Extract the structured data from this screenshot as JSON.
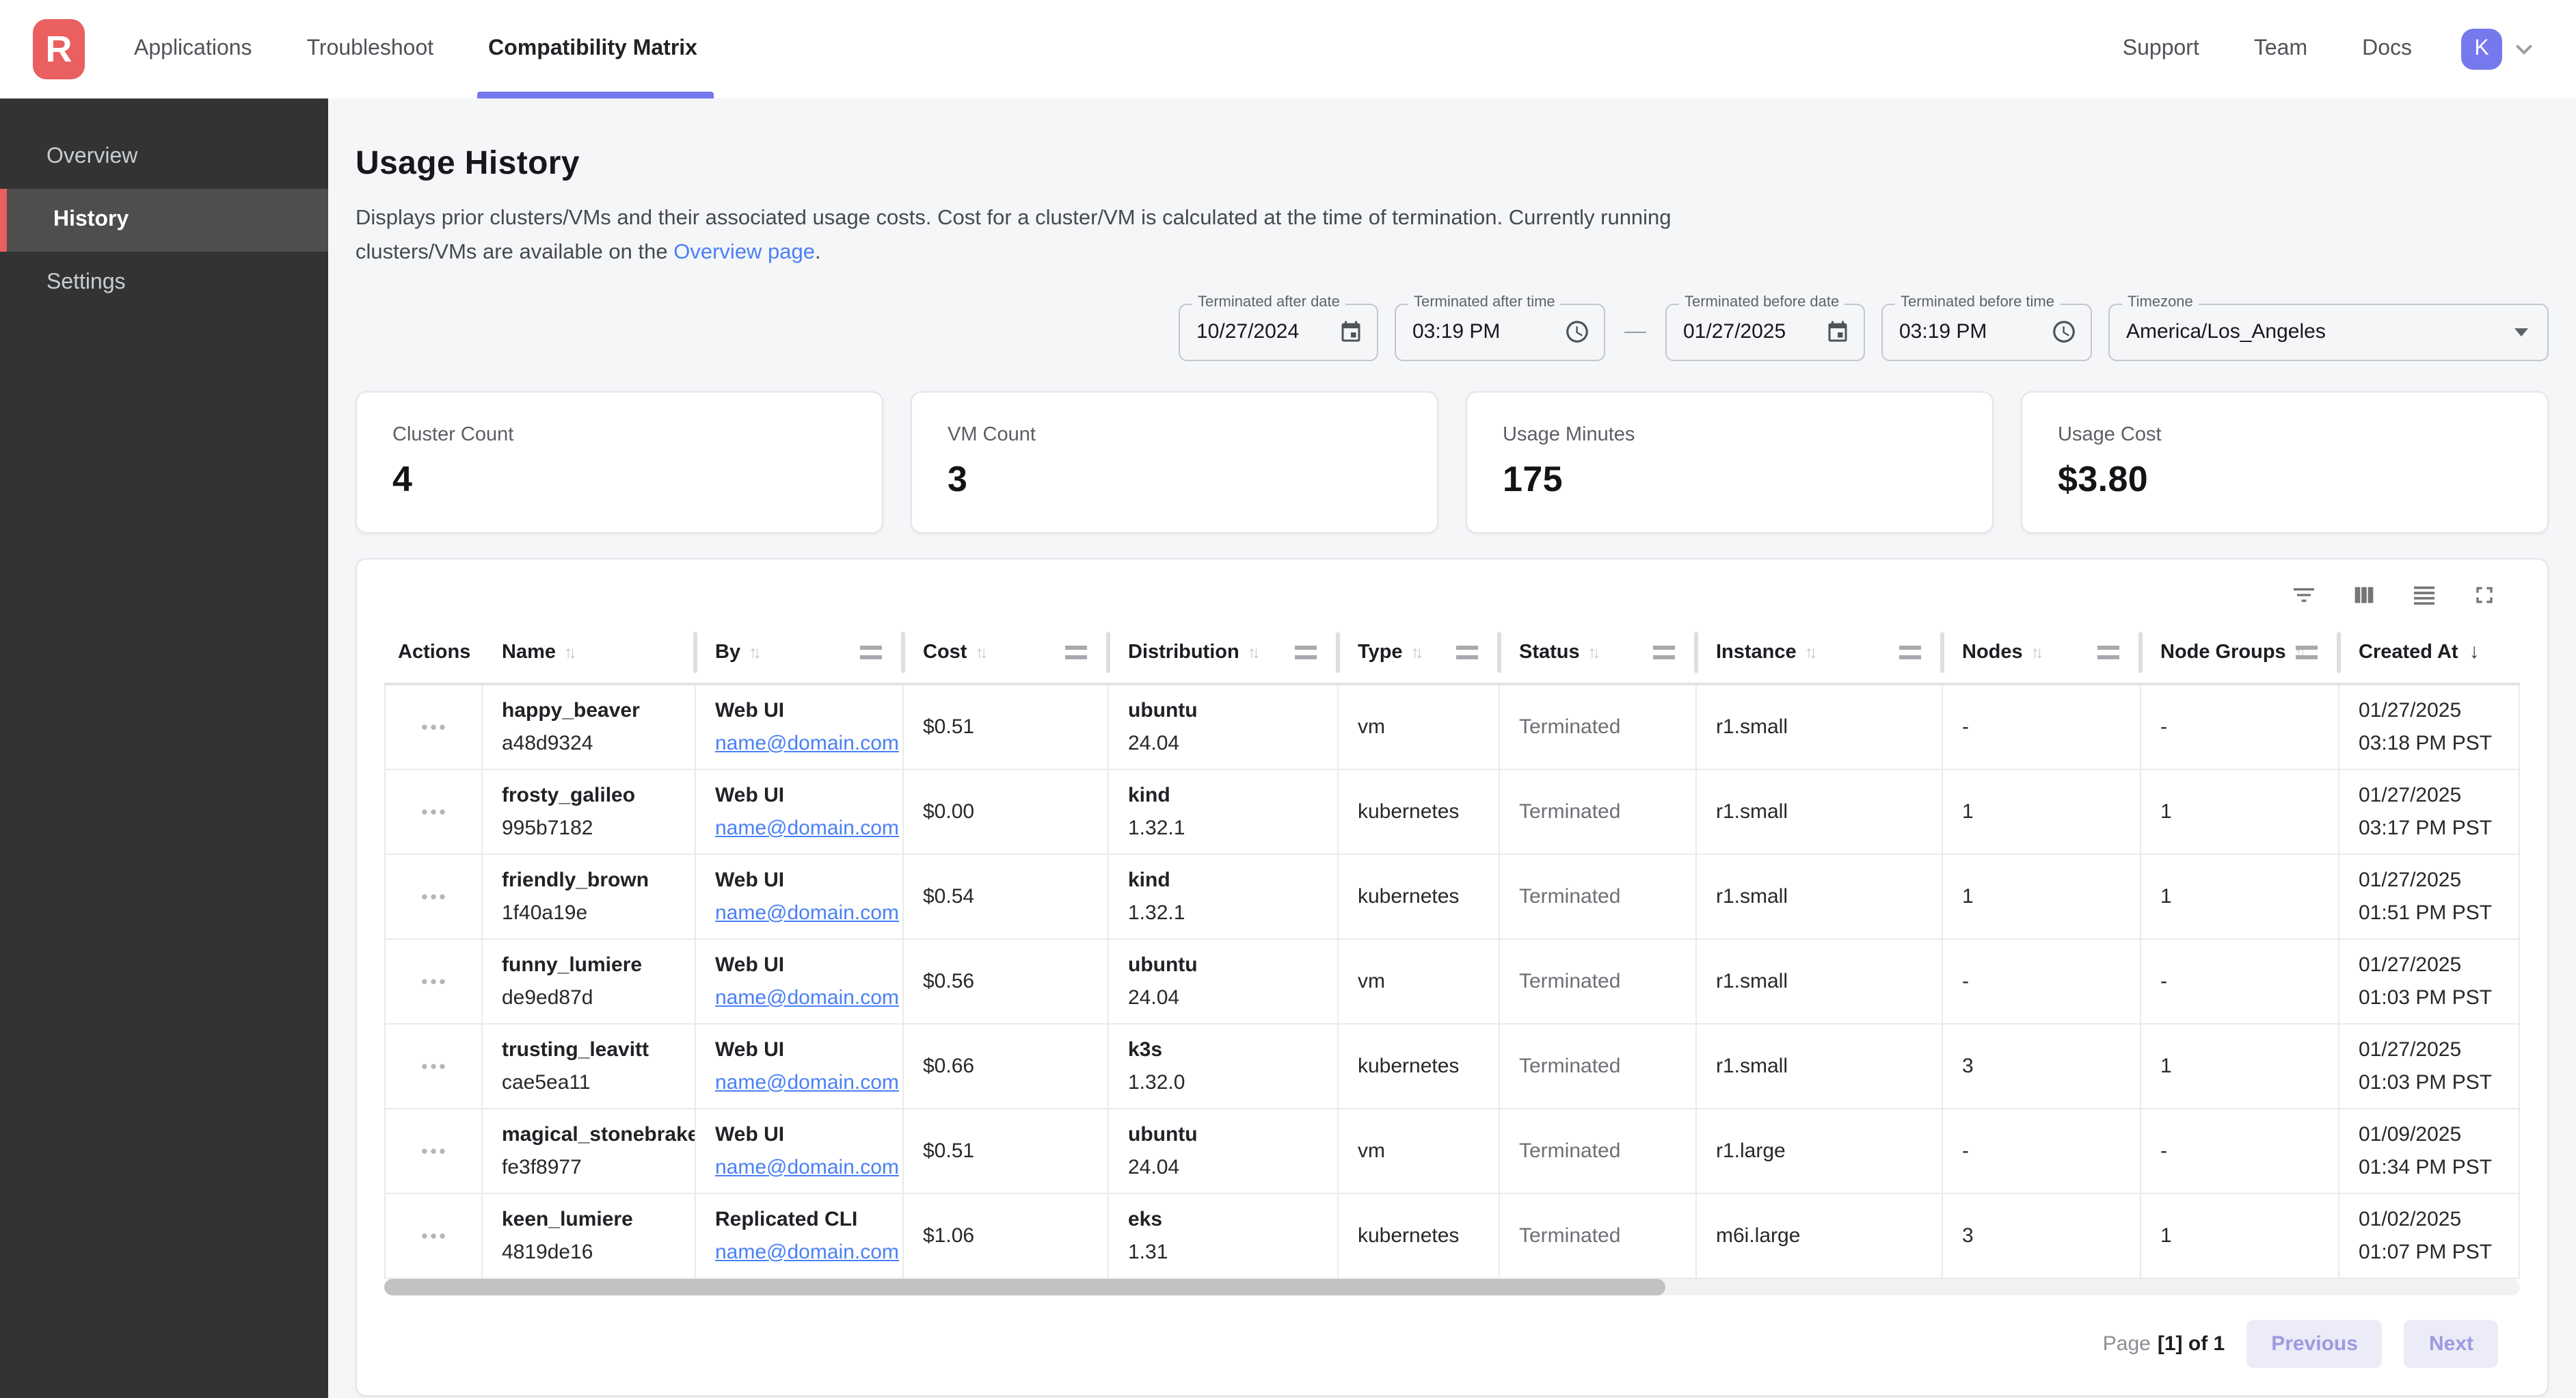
{
  "colors": {
    "brand_red": "#ea5f5f",
    "accent_indigo": "#7678ed",
    "link_blue": "#4a80f5",
    "sidebar_bg": "#333333",
    "sidebar_active_bg": "#4e4e4e",
    "page_bg": "#f5f6f8"
  },
  "nav": {
    "logo_letter": "R",
    "items": [
      {
        "label": "Applications",
        "active": false
      },
      {
        "label": "Troubleshoot",
        "active": false
      },
      {
        "label": "Compatibility Matrix",
        "active": true
      }
    ],
    "right_items": [
      {
        "label": "Support"
      },
      {
        "label": "Team"
      },
      {
        "label": "Docs"
      }
    ],
    "avatar_letter": "K"
  },
  "sidebar": {
    "items": [
      {
        "label": "Overview",
        "active": false
      },
      {
        "label": "History",
        "active": true
      },
      {
        "label": "Settings",
        "active": false
      }
    ]
  },
  "page": {
    "title": "Usage History",
    "description_before_link": "Displays prior clusters/VMs and their associated usage costs. Cost for a cluster/VM is calculated at the time of termination. Currently running clusters/VMs are available on the ",
    "description_link": "Overview page",
    "description_after_link": "."
  },
  "filters": {
    "terminated_after_date": {
      "label": "Terminated after date",
      "value": "10/27/2024"
    },
    "terminated_after_time": {
      "label": "Terminated after time",
      "value": "03:19 PM"
    },
    "range_separator": "—",
    "terminated_before_date": {
      "label": "Terminated before date",
      "value": "01/27/2025"
    },
    "terminated_before_time": {
      "label": "Terminated before time",
      "value": "03:19 PM"
    },
    "timezone": {
      "label": "Timezone",
      "value": "America/Los_Angeles"
    }
  },
  "stats": [
    {
      "label": "Cluster Count",
      "value": "4"
    },
    {
      "label": "VM Count",
      "value": "3"
    },
    {
      "label": "Usage Minutes",
      "value": "175"
    },
    {
      "label": "Usage Cost",
      "value": "$3.80"
    }
  ],
  "table": {
    "columns": [
      "Actions",
      "Name",
      "By",
      "Cost",
      "Distribution",
      "Type",
      "Status",
      "Instance",
      "Nodes",
      "Node Groups",
      "Created At"
    ],
    "sort_column": "Created At",
    "sort_direction": "desc",
    "toolbar_icons": [
      "filter-icon",
      "columns-icon",
      "density-icon",
      "fullscreen-icon"
    ],
    "rows": [
      {
        "name": "happy_beaver",
        "id": "a48d9324",
        "by": "Web UI",
        "email": "name@domain.com",
        "cost": "$0.51",
        "distribution": "ubuntu",
        "version": "24.04",
        "type": "vm",
        "status": "Terminated",
        "instance": "r1.small",
        "nodes": "-",
        "node_groups": "-",
        "created_date": "01/27/2025",
        "created_time": "03:18 PM PST"
      },
      {
        "name": "frosty_galileo",
        "id": "995b7182",
        "by": "Web UI",
        "email": "name@domain.com",
        "cost": "$0.00",
        "distribution": "kind",
        "version": "1.32.1",
        "type": "kubernetes",
        "status": "Terminated",
        "instance": "r1.small",
        "nodes": "1",
        "node_groups": "1",
        "created_date": "01/27/2025",
        "created_time": "03:17 PM PST"
      },
      {
        "name": "friendly_brown",
        "id": "1f40a19e",
        "by": "Web UI",
        "email": "name@domain.com",
        "cost": "$0.54",
        "distribution": "kind",
        "version": "1.32.1",
        "type": "kubernetes",
        "status": "Terminated",
        "instance": "r1.small",
        "nodes": "1",
        "node_groups": "1",
        "created_date": "01/27/2025",
        "created_time": "01:51 PM PST"
      },
      {
        "name": "funny_lumiere",
        "id": "de9ed87d",
        "by": "Web UI",
        "email": "name@domain.com",
        "cost": "$0.56",
        "distribution": "ubuntu",
        "version": "24.04",
        "type": "vm",
        "status": "Terminated",
        "instance": "r1.small",
        "nodes": "-",
        "node_groups": "-",
        "created_date": "01/27/2025",
        "created_time": "01:03 PM PST"
      },
      {
        "name": "trusting_leavitt",
        "id": "cae5ea11",
        "by": "Web UI",
        "email": "name@domain.com",
        "cost": "$0.66",
        "distribution": "k3s",
        "version": "1.32.0",
        "type": "kubernetes",
        "status": "Terminated",
        "instance": "r1.small",
        "nodes": "3",
        "node_groups": "1",
        "created_date": "01/27/2025",
        "created_time": "01:03 PM PST"
      },
      {
        "name": "magical_stonebraker",
        "id": "fe3f8977",
        "by": "Web UI",
        "email": "name@domain.com",
        "cost": "$0.51",
        "distribution": "ubuntu",
        "version": "24.04",
        "type": "vm",
        "status": "Terminated",
        "instance": "r1.large",
        "nodes": "-",
        "node_groups": "-",
        "created_date": "01/09/2025",
        "created_time": "01:34 PM PST"
      },
      {
        "name": "keen_lumiere",
        "id": "4819de16",
        "by": "Replicated CLI",
        "email": "name@domain.com",
        "cost": "$1.06",
        "distribution": "eks",
        "version": "1.31",
        "type": "kubernetes",
        "status": "Terminated",
        "instance": "m6i.large",
        "nodes": "3",
        "node_groups": "1",
        "created_date": "01/02/2025",
        "created_time": "01:07 PM PST"
      }
    ]
  },
  "icons": {
    "row_actions": "•••",
    "sort_both": "↑↓",
    "sort_desc": "↓"
  },
  "pagination": {
    "page_label": "Page",
    "page_value": "[1] of 1",
    "previous_label": "Previous",
    "next_label": "Next"
  }
}
